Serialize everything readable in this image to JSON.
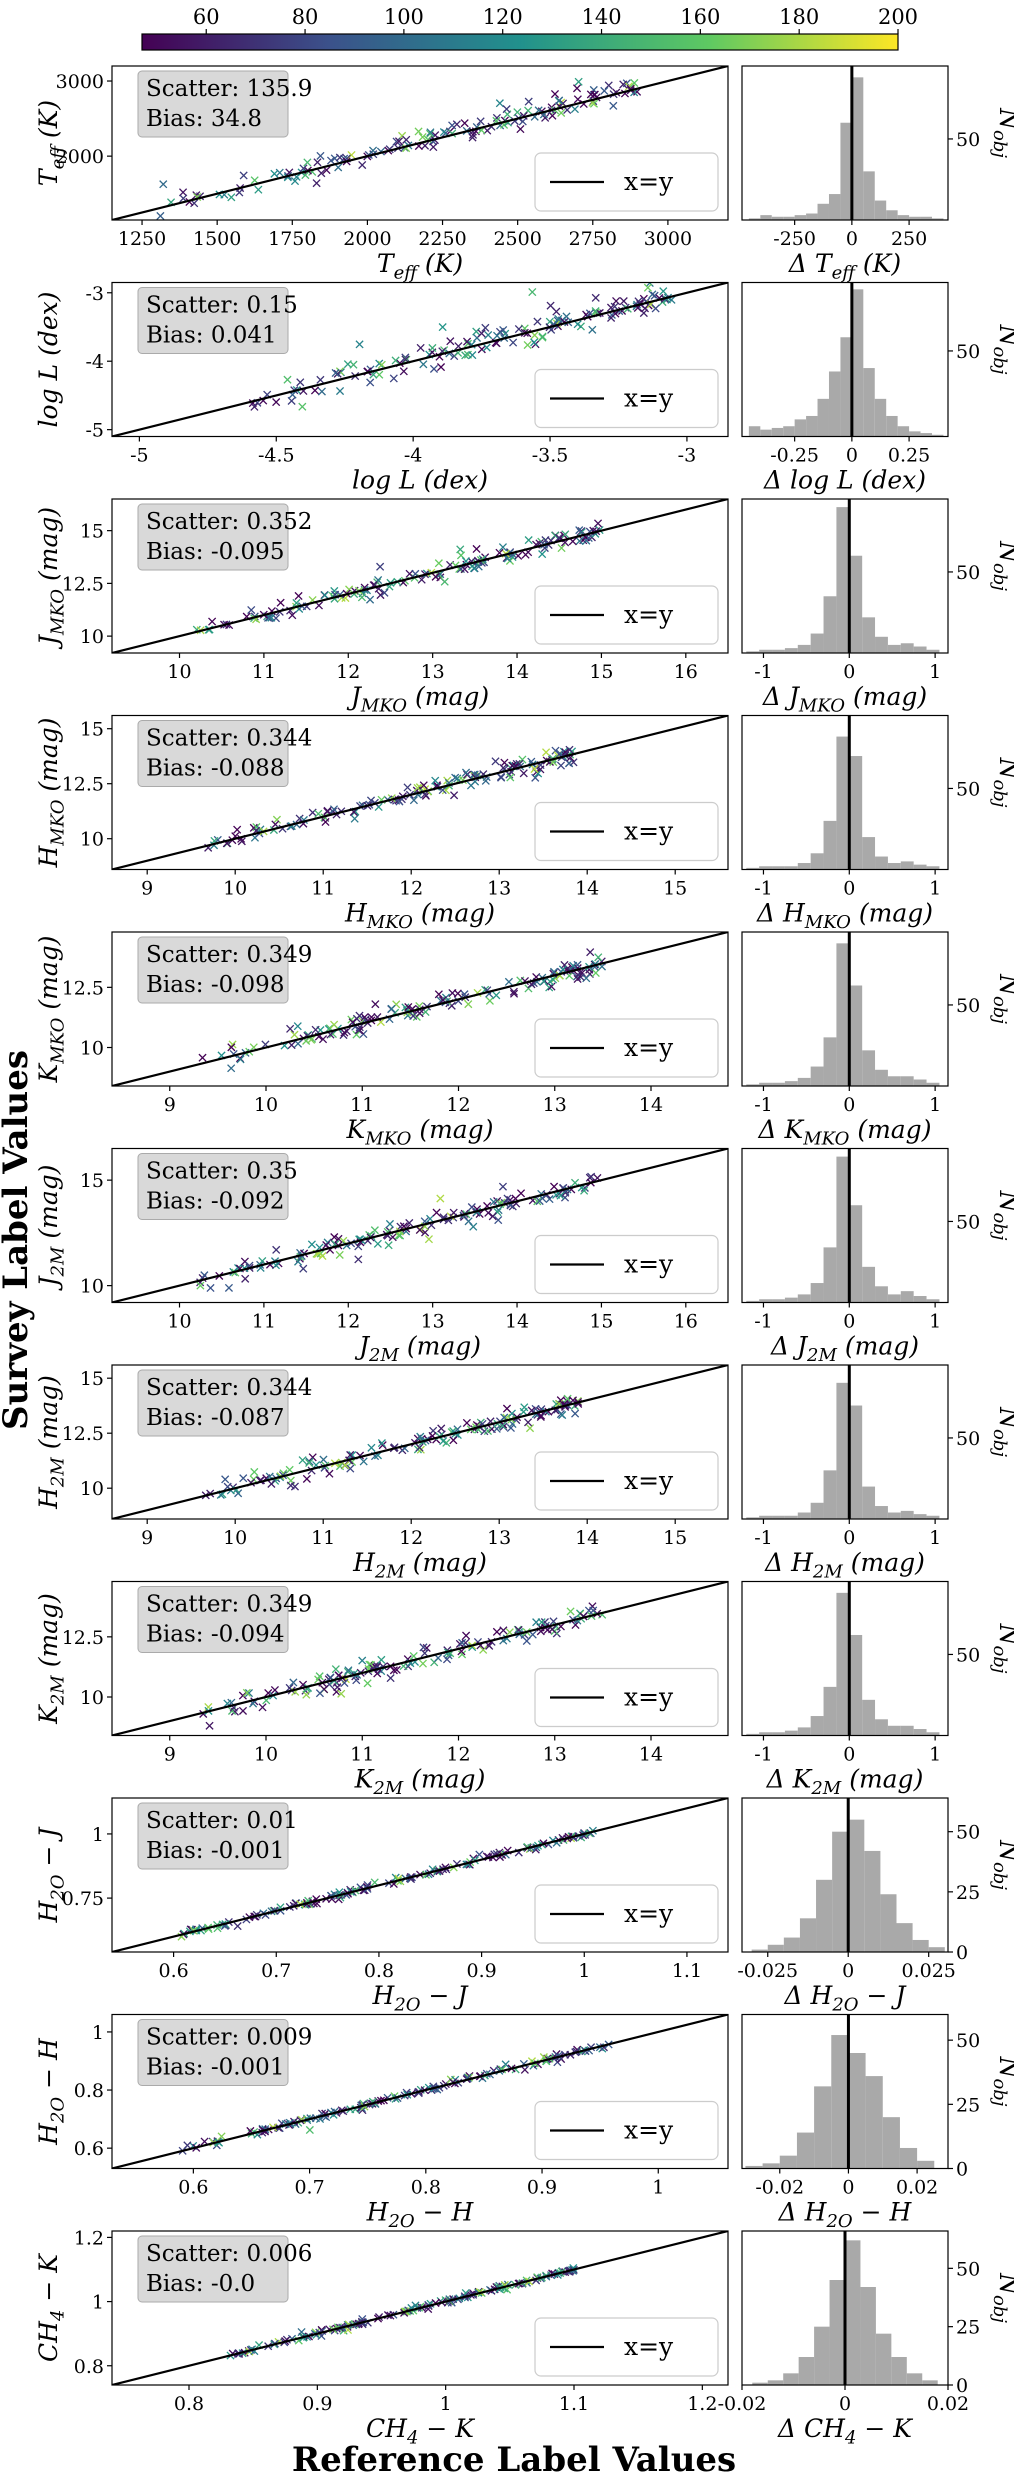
{
  "supylabel": "Survey Label Values",
  "supxlabel": "Reference Label Values",
  "colorbar": {
    "ticks": [
      "60",
      "80",
      "100",
      "120",
      "140",
      "160",
      "180",
      "200"
    ],
    "range": [
      47,
      200
    ],
    "colors": [
      "#440154",
      "#3b528b",
      "#21918c",
      "#5ec962",
      "#fde725"
    ]
  },
  "legend_label": "x=y",
  "hist_ylabel": "N_obj",
  "chart_data": [
    {
      "type": "scatter",
      "title": "Teff",
      "xlabel": "T_eff (K)",
      "ylabel": "T_eff (K)",
      "xlim": [
        1150,
        3200
      ],
      "ylim": [
        1150,
        3200
      ],
      "xticks": [
        1250,
        1500,
        1750,
        2000,
        2250,
        2500,
        2750,
        3000
      ],
      "yticks": [
        2000,
        3000
      ],
      "x_range": [
        1300,
        2900
      ],
      "scatter": 135.9,
      "bias": 34.8,
      "stats": [
        "Scatter: 135.9",
        "Bias: 34.8"
      ],
      "hist": {
        "xlabel": "Δ T_eff (K)",
        "xlim": [
          -480,
          420
        ],
        "xticks": [
          -250,
          0,
          250
        ],
        "ylim": [
          0,
          95
        ],
        "yticks": [
          50
        ],
        "bins": [
          -450,
          -400,
          -350,
          -300,
          -250,
          -200,
          -150,
          -100,
          -50,
          0,
          50,
          100,
          150,
          200,
          250,
          300,
          350,
          400
        ],
        "counts": [
          1,
          3,
          2,
          2,
          3,
          4,
          10,
          16,
          60,
          88,
          30,
          12,
          6,
          3,
          2,
          2,
          1
        ]
      }
    },
    {
      "type": "scatter",
      "title": "logL",
      "xlabel": "log L (dex)",
      "ylabel": "log L (dex)",
      "xlim": [
        -5.1,
        -2.85
      ],
      "ylim": [
        -5.1,
        -2.85
      ],
      "xticks": [
        -5.0,
        -4.5,
        -4.0,
        -3.5,
        -3.0
      ],
      "yticks": [
        -5,
        -4,
        -3
      ],
      "x_range": [
        -4.6,
        -3.05
      ],
      "scatter": 0.15,
      "bias": 0.041,
      "stats": [
        "Scatter: 0.15",
        "Bias: 0.041"
      ],
      "hist": {
        "xlabel": "Δ log L (dex)",
        "xlim": [
          -0.48,
          0.42
        ],
        "xticks": [
          -0.25,
          0.0,
          0.25
        ],
        "ylim": [
          0,
          90
        ],
        "yticks": [
          50
        ],
        "bins": [
          -0.45,
          -0.4,
          -0.35,
          -0.3,
          -0.25,
          -0.2,
          -0.15,
          -0.1,
          -0.05,
          0.0,
          0.05,
          0.1,
          0.15,
          0.2,
          0.25,
          0.3,
          0.35,
          0.4
        ],
        "counts": [
          6,
          4,
          5,
          6,
          10,
          12,
          22,
          38,
          58,
          86,
          40,
          22,
          12,
          6,
          3,
          2,
          1
        ]
      }
    },
    {
      "type": "scatter",
      "title": "J_MKO",
      "xlabel": "J_MKO (mag)",
      "ylabel": "J_MKO (mag)",
      "xlim": [
        9.2,
        16.5
      ],
      "ylim": [
        9.2,
        16.5
      ],
      "xticks": [
        10,
        11,
        12,
        13,
        14,
        15,
        16
      ],
      "yticks": [
        10.0,
        12.5,
        15.0
      ],
      "x_range": [
        10.2,
        15.0
      ],
      "scatter": 0.352,
      "bias": -0.095,
      "stats": [
        "Scatter: 0.352",
        "Bias: -0.095"
      ],
      "hist": {
        "xlabel": "Δ J_MKO (mag)",
        "xlim": [
          -1.25,
          1.15
        ],
        "xticks": [
          -1,
          0,
          1
        ],
        "ylim": [
          0,
          95
        ],
        "yticks": [
          50
        ],
        "bins": [
          -1.2,
          -1.05,
          -0.9,
          -0.75,
          -0.6,
          -0.45,
          -0.3,
          -0.15,
          0.0,
          0.15,
          0.3,
          0.45,
          0.6,
          0.75,
          0.9,
          1.05
        ],
        "counts": [
          1,
          2,
          2,
          3,
          5,
          12,
          35,
          90,
          60,
          22,
          10,
          5,
          6,
          4,
          2
        ]
      }
    },
    {
      "type": "scatter",
      "title": "H_MKO",
      "xlabel": "H_MKO (mag)",
      "ylabel": "H_MKO (mag)",
      "xlim": [
        8.6,
        15.6
      ],
      "ylim": [
        8.6,
        15.6
      ],
      "xticks": [
        9,
        10,
        11,
        12,
        13,
        14,
        15
      ],
      "yticks": [
        10.0,
        12.5,
        15.0
      ],
      "x_range": [
        9.6,
        13.9
      ],
      "scatter": 0.344,
      "bias": -0.088,
      "stats": [
        "Scatter: 0.344",
        "Bias: -0.088"
      ],
      "hist": {
        "xlabel": "Δ H_MKO (mag)",
        "xlim": [
          -1.25,
          1.15
        ],
        "xticks": [
          -1,
          0,
          1
        ],
        "ylim": [
          0,
          95
        ],
        "yticks": [
          50
        ],
        "bins": [
          -1.2,
          -1.05,
          -0.9,
          -0.75,
          -0.6,
          -0.45,
          -0.3,
          -0.15,
          0.0,
          0.15,
          0.3,
          0.45,
          0.6,
          0.75,
          0.9,
          1.05
        ],
        "counts": [
          1,
          2,
          2,
          2,
          4,
          10,
          30,
          82,
          70,
          20,
          8,
          4,
          5,
          3,
          2
        ]
      }
    },
    {
      "type": "scatter",
      "title": "K_MKO",
      "xlabel": "K_MKO (mag)",
      "ylabel": "K_MKO (mag)",
      "xlim": [
        8.4,
        14.8
      ],
      "ylim": [
        8.4,
        14.8
      ],
      "xticks": [
        9,
        10,
        11,
        12,
        13,
        14
      ],
      "yticks": [
        10.0,
        12.5
      ],
      "x_range": [
        9.3,
        13.5
      ],
      "scatter": 0.349,
      "bias": -0.098,
      "stats": [
        "Scatter: 0.349",
        "Bias: -0.098"
      ],
      "hist": {
        "xlabel": "Δ K_MKO (mag)",
        "xlim": [
          -1.25,
          1.15
        ],
        "xticks": [
          -1,
          0,
          1
        ],
        "ylim": [
          0,
          95
        ],
        "yticks": [
          50
        ],
        "bins": [
          -1.2,
          -1.05,
          -0.9,
          -0.75,
          -0.6,
          -0.45,
          -0.3,
          -0.15,
          0.0,
          0.15,
          0.3,
          0.45,
          0.6,
          0.75,
          0.9,
          1.05
        ],
        "counts": [
          1,
          2,
          2,
          3,
          5,
          12,
          30,
          88,
          62,
          22,
          10,
          6,
          6,
          4,
          2
        ]
      }
    },
    {
      "type": "scatter",
      "title": "J_2M",
      "xlabel": "J_2M (mag)",
      "ylabel": "J_2M (mag)",
      "xlim": [
        9.2,
        16.5
      ],
      "ylim": [
        9.2,
        16.5
      ],
      "xticks": [
        10,
        11,
        12,
        13,
        14,
        15,
        16
      ],
      "yticks": [
        10,
        15
      ],
      "x_range": [
        10.2,
        15.0
      ],
      "scatter": 0.35,
      "bias": -0.092,
      "stats": [
        "Scatter: 0.35",
        "Bias: -0.092"
      ],
      "hist": {
        "xlabel": "Δ J_2M (mag)",
        "xlim": [
          -1.25,
          1.15
        ],
        "xticks": [
          -1,
          0,
          1
        ],
        "ylim": [
          0,
          95
        ],
        "yticks": [
          50
        ],
        "bins": [
          -1.2,
          -1.05,
          -0.9,
          -0.75,
          -0.6,
          -0.45,
          -0.3,
          -0.15,
          0.0,
          0.15,
          0.3,
          0.45,
          0.6,
          0.75,
          0.9,
          1.05
        ],
        "counts": [
          1,
          2,
          2,
          3,
          5,
          12,
          34,
          90,
          60,
          22,
          10,
          5,
          7,
          4,
          2
        ]
      }
    },
    {
      "type": "scatter",
      "title": "H_2M",
      "xlabel": "H_2M (mag)",
      "ylabel": "H_2M (mag)",
      "xlim": [
        8.6,
        15.6
      ],
      "ylim": [
        8.6,
        15.6
      ],
      "xticks": [
        9,
        10,
        11,
        12,
        13,
        14,
        15
      ],
      "yticks": [
        10.0,
        12.5,
        15.0
      ],
      "x_range": [
        9.6,
        13.9
      ],
      "scatter": 0.344,
      "bias": -0.087,
      "stats": [
        "Scatter: 0.344",
        "Bias: -0.087"
      ],
      "hist": {
        "xlabel": "Δ H_2M (mag)",
        "xlim": [
          -1.25,
          1.15
        ],
        "xticks": [
          -1,
          0,
          1
        ],
        "ylim": [
          0,
          95
        ],
        "yticks": [
          50
        ],
        "bins": [
          -1.2,
          -1.05,
          -0.9,
          -0.75,
          -0.6,
          -0.45,
          -0.3,
          -0.15,
          0.0,
          0.15,
          0.3,
          0.45,
          0.6,
          0.75,
          0.9,
          1.05
        ],
        "counts": [
          1,
          2,
          2,
          2,
          4,
          10,
          30,
          84,
          70,
          20,
          8,
          4,
          5,
          3,
          2
        ]
      }
    },
    {
      "type": "scatter",
      "title": "K_2M",
      "xlabel": "K_2M (mag)",
      "ylabel": "K_2M (mag)",
      "xlim": [
        8.4,
        14.8
      ],
      "ylim": [
        8.4,
        14.8
      ],
      "xticks": [
        9,
        10,
        11,
        12,
        13,
        14
      ],
      "yticks": [
        10.0,
        12.5
      ],
      "x_range": [
        9.3,
        13.5
      ],
      "scatter": 0.349,
      "bias": -0.094,
      "stats": [
        "Scatter: 0.349",
        "Bias: -0.094"
      ],
      "hist": {
        "xlabel": "Δ K_2M (mag)",
        "xlim": [
          -1.25,
          1.15
        ],
        "xticks": [
          -1,
          0,
          1
        ],
        "ylim": [
          0,
          95
        ],
        "yticks": [
          50
        ],
        "bins": [
          -1.2,
          -1.05,
          -0.9,
          -0.75,
          -0.6,
          -0.45,
          -0.3,
          -0.15,
          0.0,
          0.15,
          0.3,
          0.45,
          0.6,
          0.75,
          0.9,
          1.05
        ],
        "counts": [
          1,
          2,
          2,
          3,
          5,
          12,
          30,
          88,
          62,
          22,
          10,
          6,
          6,
          4,
          2
        ]
      }
    },
    {
      "type": "scatter",
      "title": "H2O-J",
      "xlabel": "H_2O − J",
      "ylabel": "H_2O − J",
      "xlim": [
        0.54,
        1.14
      ],
      "ylim": [
        0.54,
        1.14
      ],
      "xticks": [
        0.6,
        0.7,
        0.8,
        0.9,
        1.0,
        1.1
      ],
      "yticks": [
        0.75,
        1.0
      ],
      "x_range": [
        0.6,
        1.01
      ],
      "scatter": 0.01,
      "bias": -0.001,
      "stats": [
        "Scatter: 0.01",
        "Bias: -0.001"
      ],
      "hist": {
        "xlabel": "Δ H_2O − J",
        "xlim": [
          -0.033,
          0.031
        ],
        "xticks": [
          -0.025,
          0.0,
          0.025
        ],
        "ylim": [
          0,
          64
        ],
        "yticks": [
          0,
          25,
          50
        ],
        "bins": [
          -0.03,
          -0.025,
          -0.02,
          -0.015,
          -0.01,
          -0.005,
          0.0,
          0.005,
          0.01,
          0.015,
          0.02,
          0.025,
          0.03
        ],
        "counts": [
          1,
          3,
          6,
          14,
          30,
          50,
          55,
          42,
          24,
          12,
          5,
          2
        ]
      }
    },
    {
      "type": "scatter",
      "title": "H2O-H",
      "xlabel": "H_2O − H",
      "ylabel": "H_2O − H",
      "xlim": [
        0.53,
        1.06
      ],
      "ylim": [
        0.53,
        1.06
      ],
      "xticks": [
        0.6,
        0.7,
        0.8,
        0.9,
        1.0
      ],
      "yticks": [
        0.6,
        0.8,
        1.0
      ],
      "x_range": [
        0.58,
        0.96
      ],
      "scatter": 0.009,
      "bias": -0.001,
      "stats": [
        "Scatter: 0.009",
        "Bias: -0.001"
      ],
      "hist": {
        "xlabel": "Δ H_2O − H",
        "xlim": [
          -0.031,
          0.029
        ],
        "xticks": [
          -0.02,
          0.0,
          0.02
        ],
        "ylim": [
          0,
          60
        ],
        "yticks": [
          0,
          25,
          50
        ],
        "bins": [
          -0.03,
          -0.025,
          -0.02,
          -0.015,
          -0.01,
          -0.005,
          0.0,
          0.005,
          0.01,
          0.015,
          0.02,
          0.025
        ],
        "counts": [
          1,
          2,
          5,
          14,
          32,
          52,
          45,
          36,
          20,
          8,
          3
        ]
      }
    },
    {
      "type": "scatter",
      "title": "CH4-K",
      "xlabel": "CH_4 − K",
      "ylabel": "CH_4 − K",
      "xlim": [
        0.74,
        1.22
      ],
      "ylim": [
        0.74,
        1.22
      ],
      "xticks": [
        0.8,
        0.9,
        1.0,
        1.1,
        1.2
      ],
      "yticks": [
        0.8,
        1.0,
        1.2
      ],
      "x_range": [
        0.82,
        1.1
      ],
      "scatter": 0.006,
      "bias": -0.0,
      "stats": [
        "Scatter: 0.006",
        "Bias: -0.0"
      ],
      "hist": {
        "xlabel": "Δ CH_4 − K",
        "xlim": [
          -0.02,
          0.02
        ],
        "xticks": [
          -0.02,
          0.0,
          0.02
        ],
        "ylim": [
          0,
          66
        ],
        "yticks": [
          0,
          25,
          50
        ],
        "bins": [
          -0.018,
          -0.015,
          -0.012,
          -0.009,
          -0.006,
          -0.003,
          0.0,
          0.003,
          0.006,
          0.009,
          0.012,
          0.015,
          0.018
        ],
        "counts": [
          1,
          2,
          5,
          12,
          25,
          45,
          62,
          42,
          22,
          12,
          5,
          2
        ]
      }
    }
  ]
}
